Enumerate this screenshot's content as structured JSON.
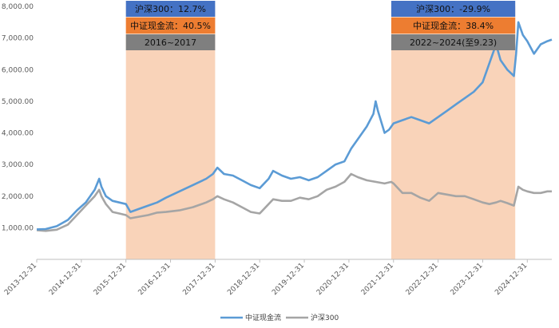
{
  "chart_data": {
    "type": "line",
    "ylim": [
      0,
      8000
    ],
    "y_ticks": [
      "1,000.00",
      "2,000.00",
      "3,000.00",
      "4,000.00",
      "5,000.00",
      "6,000.00",
      "7,000.00",
      "8,000.00"
    ],
    "y_tick_values": [
      1000,
      2000,
      3000,
      4000,
      5000,
      6000,
      7000,
      8000
    ],
    "x_ticks": [
      "2013-12-31",
      "2014-12-31",
      "2015-12-31",
      "2016-12-31",
      "2017-12-31",
      "2018-12-31",
      "2019-12-31",
      "2020-12-31",
      "2021-12-31",
      "2022-12-31",
      "2023-12-31",
      "2024-12-31"
    ],
    "x_tick_years": [
      2014,
      2015,
      2016,
      2017,
      2018,
      2019,
      2020,
      2021,
      2022,
      2023,
      2024,
      2025
    ],
    "legend_position": "bottom",
    "colors": {
      "series1": "#5B9BD5",
      "series2": "#A5A5A5",
      "shade": "#F8CBAD",
      "blue_box": "#4472C4",
      "orange_box": "#ED7D31",
      "gray_box": "#7F7F7F"
    },
    "series": [
      {
        "name": "中证现金流",
        "points": [
          [
            2014.0,
            950
          ],
          [
            2014.2,
            960
          ],
          [
            2014.45,
            1050
          ],
          [
            2014.7,
            1250
          ],
          [
            2014.9,
            1550
          ],
          [
            2015.1,
            1800
          ],
          [
            2015.3,
            2200
          ],
          [
            2015.4,
            2550
          ],
          [
            2015.45,
            2300
          ],
          [
            2015.55,
            2000
          ],
          [
            2015.7,
            1850
          ],
          [
            2015.85,
            1800
          ],
          [
            2016.0,
            1750
          ],
          [
            2016.1,
            1500
          ],
          [
            2016.3,
            1600
          ],
          [
            2016.5,
            1700
          ],
          [
            2016.7,
            1800
          ],
          [
            2016.9,
            1950
          ],
          [
            2017.2,
            2150
          ],
          [
            2017.5,
            2350
          ],
          [
            2017.8,
            2550
          ],
          [
            2017.95,
            2700
          ],
          [
            2018.05,
            2900
          ],
          [
            2018.2,
            2700
          ],
          [
            2018.4,
            2650
          ],
          [
            2018.6,
            2500
          ],
          [
            2018.8,
            2350
          ],
          [
            2019.0,
            2250
          ],
          [
            2019.2,
            2550
          ],
          [
            2019.3,
            2800
          ],
          [
            2019.5,
            2650
          ],
          [
            2019.7,
            2550
          ],
          [
            2019.9,
            2600
          ],
          [
            2020.1,
            2500
          ],
          [
            2020.3,
            2600
          ],
          [
            2020.5,
            2800
          ],
          [
            2020.7,
            3000
          ],
          [
            2020.9,
            3100
          ],
          [
            2021.05,
            3500
          ],
          [
            2021.2,
            3800
          ],
          [
            2021.4,
            4200
          ],
          [
            2021.55,
            4600
          ],
          [
            2021.6,
            5000
          ],
          [
            2021.65,
            4700
          ],
          [
            2021.8,
            4000
          ],
          [
            2021.9,
            4100
          ],
          [
            2022.0,
            4300
          ],
          [
            2022.2,
            4400
          ],
          [
            2022.4,
            4500
          ],
          [
            2022.6,
            4400
          ],
          [
            2022.8,
            4300
          ],
          [
            2023.0,
            4500
          ],
          [
            2023.2,
            4700
          ],
          [
            2023.4,
            4900
          ],
          [
            2023.6,
            5100
          ],
          [
            2023.8,
            5300
          ],
          [
            2024.0,
            5600
          ],
          [
            2024.15,
            6200
          ],
          [
            2024.3,
            6800
          ],
          [
            2024.4,
            6300
          ],
          [
            2024.55,
            6000
          ],
          [
            2024.7,
            5800
          ],
          [
            2024.75,
            6500
          ],
          [
            2024.8,
            7500
          ],
          [
            2024.9,
            7100
          ],
          [
            2025.0,
            6900
          ],
          [
            2025.15,
            6500
          ],
          [
            2025.3,
            6800
          ],
          [
            2025.45,
            6900
          ],
          [
            2025.55,
            6950
          ]
        ]
      },
      {
        "name": "沪深300",
        "points": [
          [
            2014.0,
            920
          ],
          [
            2014.2,
            900
          ],
          [
            2014.45,
            940
          ],
          [
            2014.7,
            1100
          ],
          [
            2014.9,
            1400
          ],
          [
            2015.1,
            1700
          ],
          [
            2015.3,
            2000
          ],
          [
            2015.4,
            2200
          ],
          [
            2015.45,
            2000
          ],
          [
            2015.55,
            1750
          ],
          [
            2015.7,
            1500
          ],
          [
            2015.85,
            1450
          ],
          [
            2016.0,
            1400
          ],
          [
            2016.1,
            1300
          ],
          [
            2016.3,
            1350
          ],
          [
            2016.5,
            1400
          ],
          [
            2016.7,
            1480
          ],
          [
            2016.9,
            1500
          ],
          [
            2017.2,
            1550
          ],
          [
            2017.5,
            1650
          ],
          [
            2017.8,
            1800
          ],
          [
            2017.95,
            1900
          ],
          [
            2018.05,
            2000
          ],
          [
            2018.2,
            1900
          ],
          [
            2018.4,
            1800
          ],
          [
            2018.6,
            1650
          ],
          [
            2018.8,
            1500
          ],
          [
            2019.0,
            1450
          ],
          [
            2019.2,
            1750
          ],
          [
            2019.3,
            1900
          ],
          [
            2019.5,
            1850
          ],
          [
            2019.7,
            1850
          ],
          [
            2019.9,
            1950
          ],
          [
            2020.1,
            1900
          ],
          [
            2020.3,
            2000
          ],
          [
            2020.5,
            2200
          ],
          [
            2020.7,
            2300
          ],
          [
            2020.9,
            2450
          ],
          [
            2021.05,
            2700
          ],
          [
            2021.2,
            2600
          ],
          [
            2021.4,
            2500
          ],
          [
            2021.6,
            2450
          ],
          [
            2021.8,
            2400
          ],
          [
            2021.95,
            2450
          ],
          [
            2022.0,
            2400
          ],
          [
            2022.2,
            2100
          ],
          [
            2022.4,
            2100
          ],
          [
            2022.6,
            1950
          ],
          [
            2022.8,
            1850
          ],
          [
            2023.0,
            2100
          ],
          [
            2023.2,
            2050
          ],
          [
            2023.4,
            2000
          ],
          [
            2023.6,
            2000
          ],
          [
            2023.8,
            1900
          ],
          [
            2024.0,
            1800
          ],
          [
            2024.15,
            1750
          ],
          [
            2024.3,
            1800
          ],
          [
            2024.4,
            1850
          ],
          [
            2024.55,
            1780
          ],
          [
            2024.7,
            1700
          ],
          [
            2024.8,
            2300
          ],
          [
            2024.9,
            2200
          ],
          [
            2025.0,
            2150
          ],
          [
            2025.15,
            2100
          ],
          [
            2025.3,
            2100
          ],
          [
            2025.45,
            2150
          ],
          [
            2025.55,
            2150
          ]
        ]
      }
    ],
    "shaded_periods": [
      {
        "from_year": 2016.0,
        "to_year": 2018.0,
        "labels": {
          "csi300": "沪深300：12.7%",
          "cashflow": "中证现金流：40.5%",
          "period": "2016~2017"
        }
      },
      {
        "from_year": 2021.95,
        "to_year": 2024.73,
        "labels": {
          "csi300": "沪深300：-29.9%",
          "cashflow": "中证现金流：38.4%",
          "period": "2022~2024(至9.23)"
        }
      }
    ]
  }
}
